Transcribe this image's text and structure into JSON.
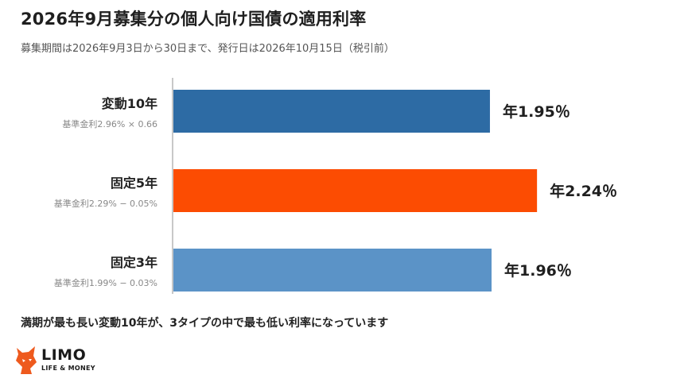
{
  "title": "2026年9月募集分の個人向け国債の適用利率",
  "subtitle": "募集期間は2026年9月3日から30日まで、発行日は2026年10月15日（税引前）",
  "footnote": "満期が最も長い変動10年が、3タイプの中で最も低い利率になっています",
  "logo": {
    "name": "LIMO",
    "tagline": "LIFE & MONEY"
  },
  "chart_data": {
    "type": "bar",
    "orientation": "horizontal",
    "categories": [
      "変動10年",
      "固定5年",
      "固定3年"
    ],
    "category_notes": [
      "基準金利2.96% × 0.66",
      "基準金利2.29% − 0.05%",
      "基準金利1.99% − 0.03%"
    ],
    "values": [
      1.95,
      2.24,
      1.96
    ],
    "value_labels": [
      "年1.95％",
      "年2.24％",
      "年1.96％"
    ],
    "colors": [
      "#2d6ba4",
      "#fc4c02",
      "#5b93c7"
    ],
    "xlim": [
      0,
      2.45
    ]
  }
}
